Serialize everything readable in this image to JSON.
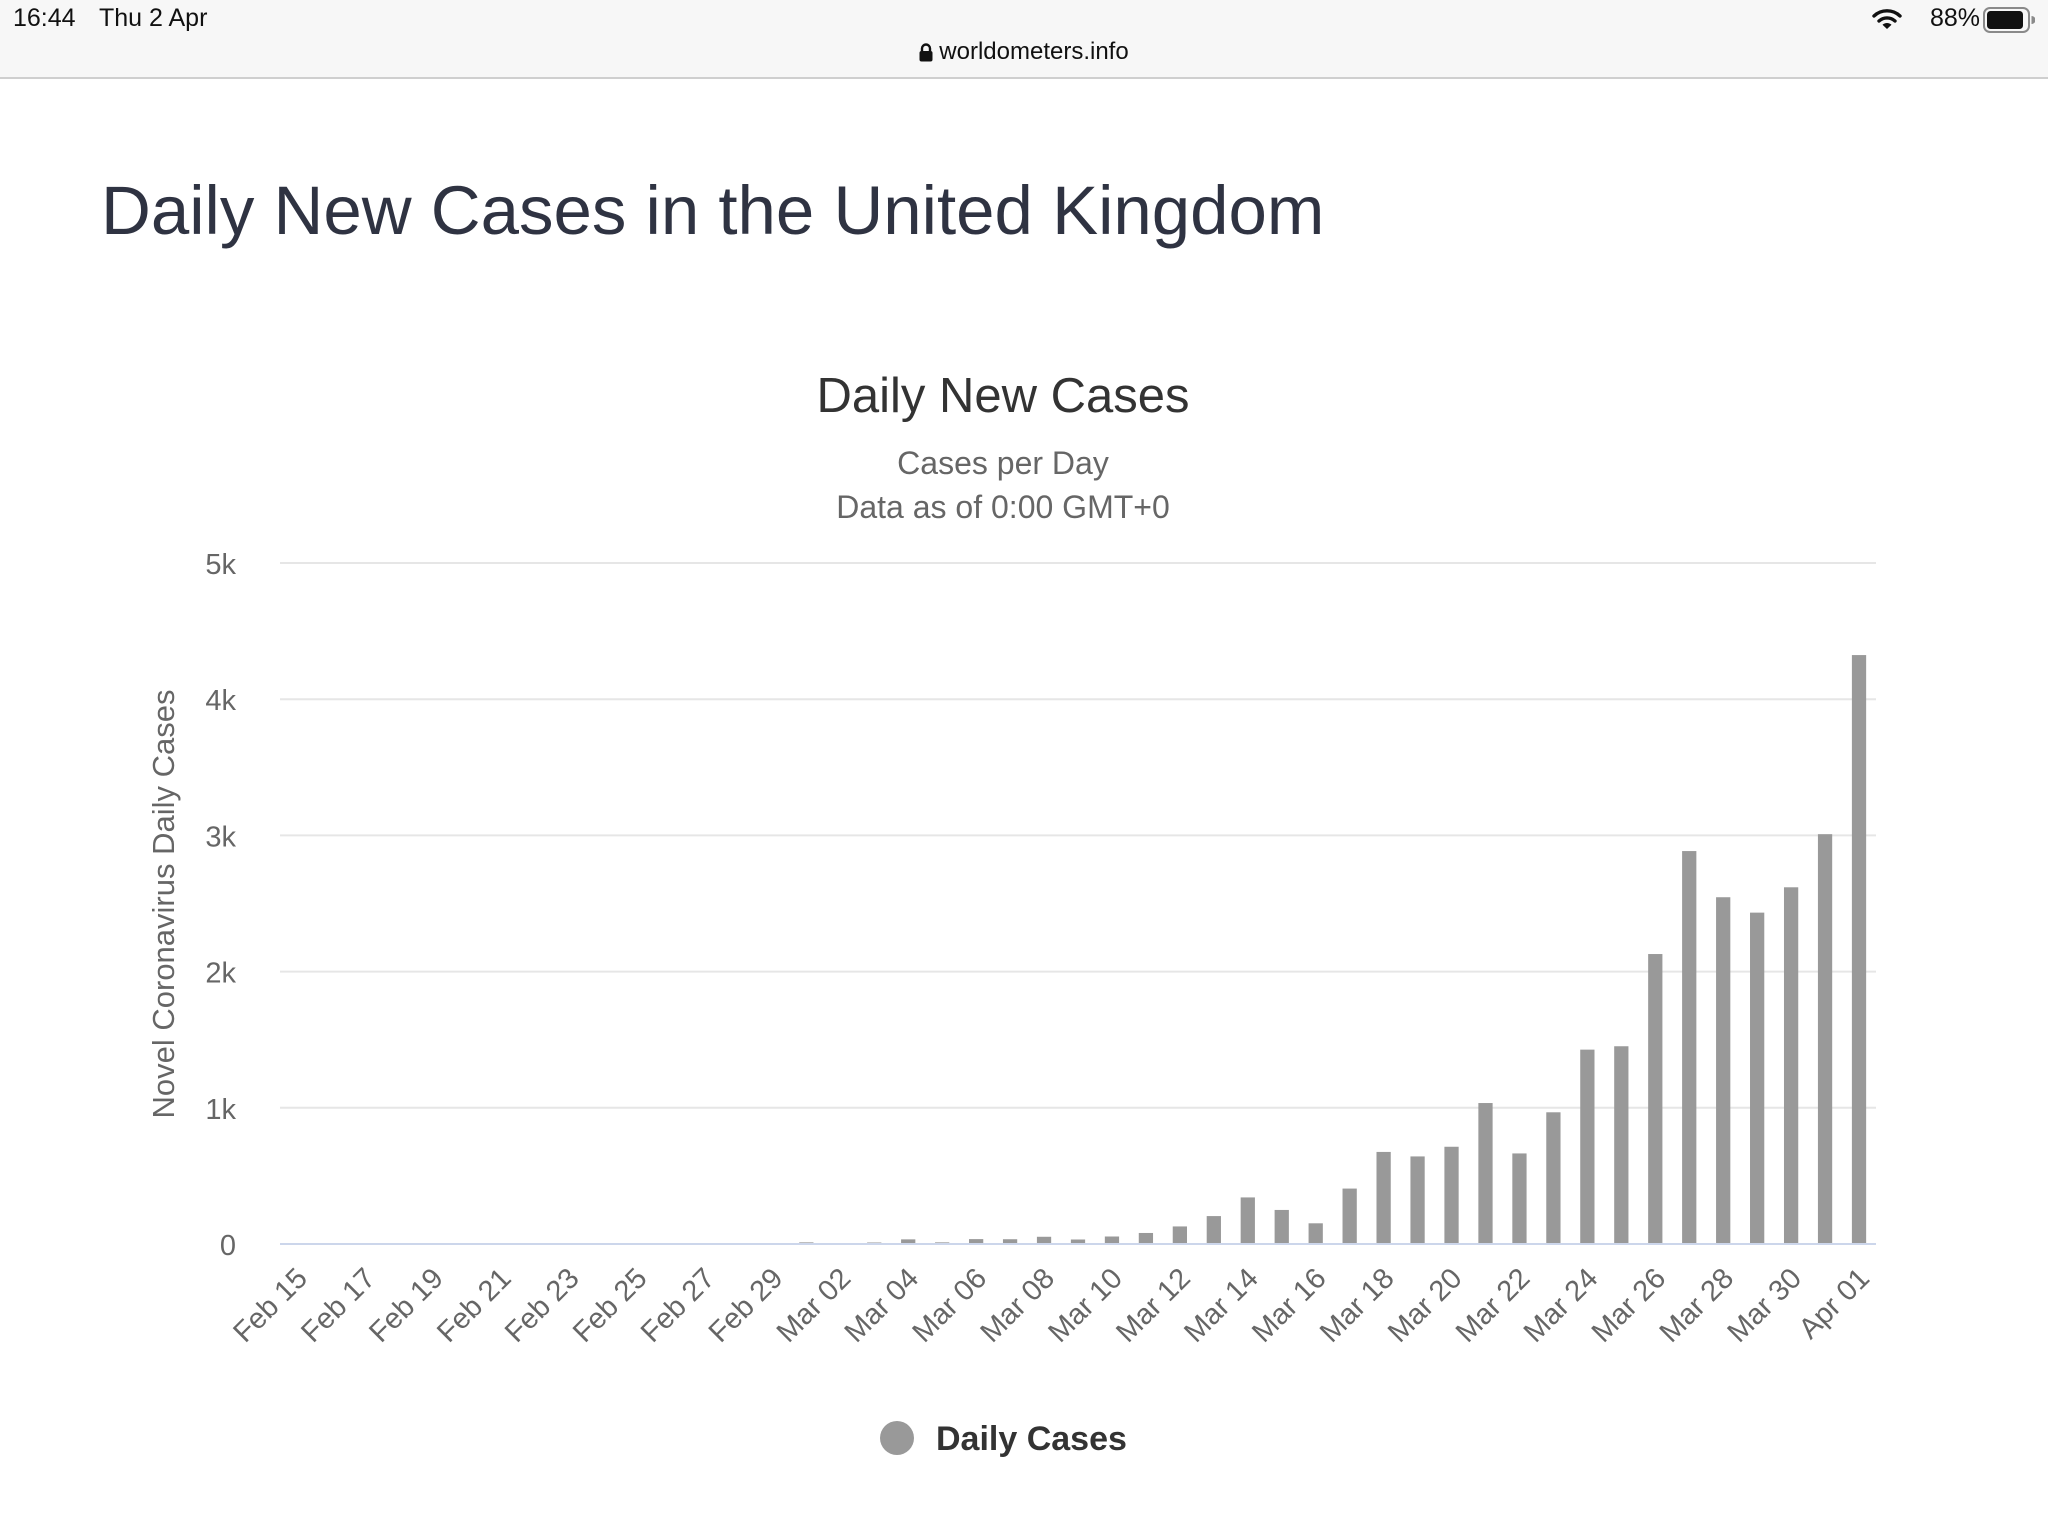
{
  "status_bar": {
    "time": "16:44",
    "date": "Thu 2 Apr",
    "url": "worldometers.info",
    "battery_percent": "88%"
  },
  "page": {
    "title": "Daily New Cases in the United Kingdom"
  },
  "chart_data": {
    "type": "bar",
    "title": "Daily New Cases",
    "subtitle_lines": [
      "Cases per Day",
      "Data as of 0:00 GMT+0"
    ],
    "xlabel": "",
    "ylabel": "Novel Coronavirus Daily Cases",
    "ylim": [
      0,
      5000
    ],
    "y_ticks": [
      {
        "value": 0,
        "label": "0"
      },
      {
        "value": 1000,
        "label": "1k"
      },
      {
        "value": 2000,
        "label": "2k"
      },
      {
        "value": 3000,
        "label": "3k"
      },
      {
        "value": 4000,
        "label": "4k"
      },
      {
        "value": 5000,
        "label": "5k"
      }
    ],
    "grid": true,
    "legend_position": "bottom-center",
    "bar_color": "#999999",
    "categories": [
      "Feb 15",
      "Feb 16",
      "Feb 17",
      "Feb 18",
      "Feb 19",
      "Feb 20",
      "Feb 21",
      "Feb 22",
      "Feb 23",
      "Feb 24",
      "Feb 25",
      "Feb 26",
      "Feb 27",
      "Feb 28",
      "Feb 29",
      "Mar 01",
      "Mar 02",
      "Mar 03",
      "Mar 04",
      "Mar 05",
      "Mar 06",
      "Mar 07",
      "Mar 08",
      "Mar 09",
      "Mar 10",
      "Mar 11",
      "Mar 12",
      "Mar 13",
      "Mar 14",
      "Mar 15",
      "Mar 16",
      "Mar 17",
      "Mar 18",
      "Mar 19",
      "Mar 20",
      "Mar 21",
      "Mar 22",
      "Mar 23",
      "Mar 24",
      "Mar 25",
      "Mar 26",
      "Mar 27",
      "Mar 28",
      "Mar 29",
      "Mar 30",
      "Mar 31",
      "Apr 01"
    ],
    "tick_labels": [
      "Feb 15",
      "Feb 17",
      "Feb 19",
      "Feb 21",
      "Feb 23",
      "Feb 25",
      "Feb 27",
      "Feb 29",
      "Mar 02",
      "Mar 04",
      "Mar 06",
      "Mar 08",
      "Mar 10",
      "Mar 12",
      "Mar 14",
      "Mar 16",
      "Mar 18",
      "Mar 20",
      "Mar 22",
      "Mar 24",
      "Mar 26",
      "Mar 28",
      "Mar 30",
      "Apr 01"
    ],
    "series": [
      {
        "name": "Daily Cases",
        "values": [
          0,
          0,
          0,
          0,
          0,
          0,
          0,
          0,
          0,
          0,
          0,
          0,
          0,
          2,
          3,
          12,
          4,
          11,
          34,
          12,
          36,
          35,
          53,
          33,
          55,
          81,
          129,
          205,
          342,
          250,
          152,
          407,
          676,
          643,
          714,
          1035,
          665,
          967,
          1427,
          1452,
          2129,
          2885,
          2546,
          2433,
          2619,
          3009,
          4324
        ]
      }
    ]
  }
}
